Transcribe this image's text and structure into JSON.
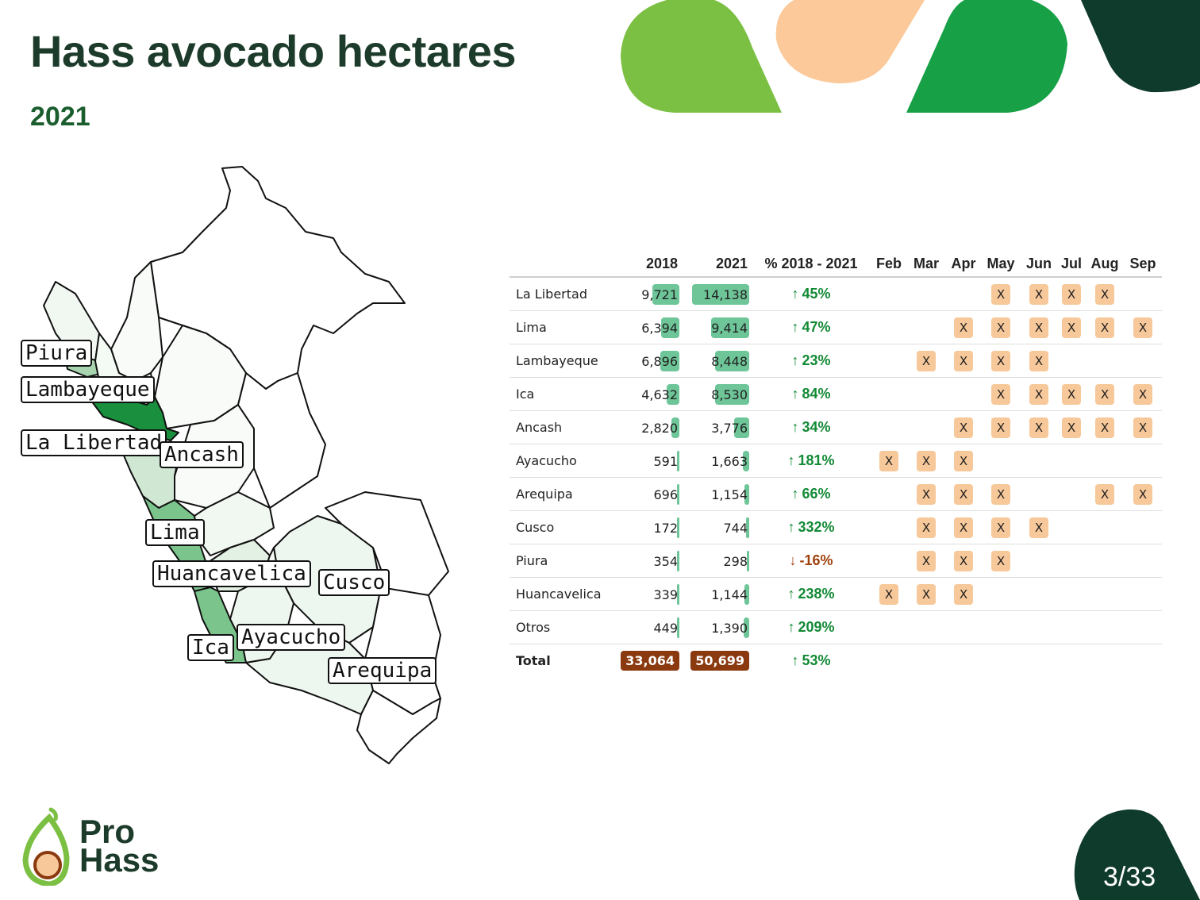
{
  "title": "Hass avocado hectares",
  "subtitle": "2021",
  "map": {
    "labels": [
      "Piura",
      "Lambayeque",
      "La Libertad",
      "Ancash",
      "Lima",
      "Huancavelica",
      "Cusco",
      "Ayacucho",
      "Ica",
      "Arequipa"
    ]
  },
  "table": {
    "headers": {
      "region": "",
      "y2018": "2018",
      "y2021": "2021",
      "change": "% 2018 - 2021",
      "months": [
        "Feb",
        "Mar",
        "Apr",
        "May",
        "Jun",
        "Jul",
        "Aug",
        "Sep"
      ]
    },
    "max_value": 14138,
    "rows": [
      {
        "region": "La Libertad",
        "v2018_label": "9,721",
        "v2018": 9721,
        "v2021_label": "14,138",
        "v2021": 14138,
        "change": "45%",
        "dir": "up",
        "months": [
          "",
          "",
          "",
          "X",
          "X",
          "X",
          "X",
          ""
        ]
      },
      {
        "region": "Lima",
        "v2018_label": "6,394",
        "v2018": 6394,
        "v2021_label": "9,414",
        "v2021": 9414,
        "change": "47%",
        "dir": "up",
        "months": [
          "",
          "",
          "X",
          "X",
          "X",
          "X",
          "X",
          "X"
        ]
      },
      {
        "region": "Lambayeque",
        "v2018_label": "6,896",
        "v2018": 6896,
        "v2021_label": "8,448",
        "v2021": 8448,
        "change": "23%",
        "dir": "up",
        "months": [
          "",
          "X",
          "X",
          "X",
          "X",
          "",
          "",
          ""
        ]
      },
      {
        "region": "Ica",
        "v2018_label": "4,632",
        "v2018": 4632,
        "v2021_label": "8,530",
        "v2021": 8530,
        "change": "84%",
        "dir": "up",
        "months": [
          "",
          "",
          "",
          "X",
          "X",
          "X",
          "X",
          "X"
        ]
      },
      {
        "region": "Ancash",
        "v2018_label": "2,820",
        "v2018": 2820,
        "v2021_label": "3,776",
        "v2021": 3776,
        "change": "34%",
        "dir": "up",
        "months": [
          "",
          "",
          "X",
          "X",
          "X",
          "X",
          "X",
          "X"
        ]
      },
      {
        "region": "Ayacucho",
        "v2018_label": "591",
        "v2018": 591,
        "v2021_label": "1,663",
        "v2021": 1663,
        "change": "181%",
        "dir": "up",
        "months": [
          "X",
          "X",
          "X",
          "",
          "",
          "",
          "",
          ""
        ]
      },
      {
        "region": "Arequipa",
        "v2018_label": "696",
        "v2018": 696,
        "v2021_label": "1,154",
        "v2021": 1154,
        "change": "66%",
        "dir": "up",
        "months": [
          "",
          "X",
          "X",
          "X",
          "",
          "",
          "X",
          "X"
        ]
      },
      {
        "region": "Cusco",
        "v2018_label": "172",
        "v2018": 172,
        "v2021_label": "744",
        "v2021": 744,
        "change": "332%",
        "dir": "up",
        "months": [
          "",
          "X",
          "X",
          "X",
          "X",
          "",
          "",
          ""
        ]
      },
      {
        "region": "Piura",
        "v2018_label": "354",
        "v2018": 354,
        "v2021_label": "298",
        "v2021": 298,
        "change": "-16%",
        "dir": "down",
        "months": [
          "",
          "X",
          "X",
          "X",
          "",
          "",
          "",
          ""
        ]
      },
      {
        "region": "Huancavelica",
        "v2018_label": "339",
        "v2018": 339,
        "v2021_label": "1,144",
        "v2021": 1144,
        "change": "238%",
        "dir": "up",
        "months": [
          "X",
          "X",
          "X",
          "",
          "",
          "",
          "",
          ""
        ]
      },
      {
        "region": "Otros",
        "v2018_label": "449",
        "v2018": 449,
        "v2021_label": "1,390",
        "v2021": 1390,
        "change": "209%",
        "dir": "up",
        "months": [
          "",
          "",
          "",
          "",
          "",
          "",
          "",
          ""
        ]
      }
    ],
    "total": {
      "region": "Total",
      "v2018": "33,064",
      "v2021": "50,699",
      "change": "53%",
      "dir": "up"
    }
  },
  "logo": {
    "line1": "Pro",
    "line2": "Hass"
  },
  "page": {
    "current": "3",
    "total": "33",
    "separator": "/"
  },
  "colors": {
    "bar": "#6dc598",
    "up": "#138a36",
    "down": "#a0410d",
    "month_box": "#f7c899",
    "total_box": "#8b3a10"
  }
}
